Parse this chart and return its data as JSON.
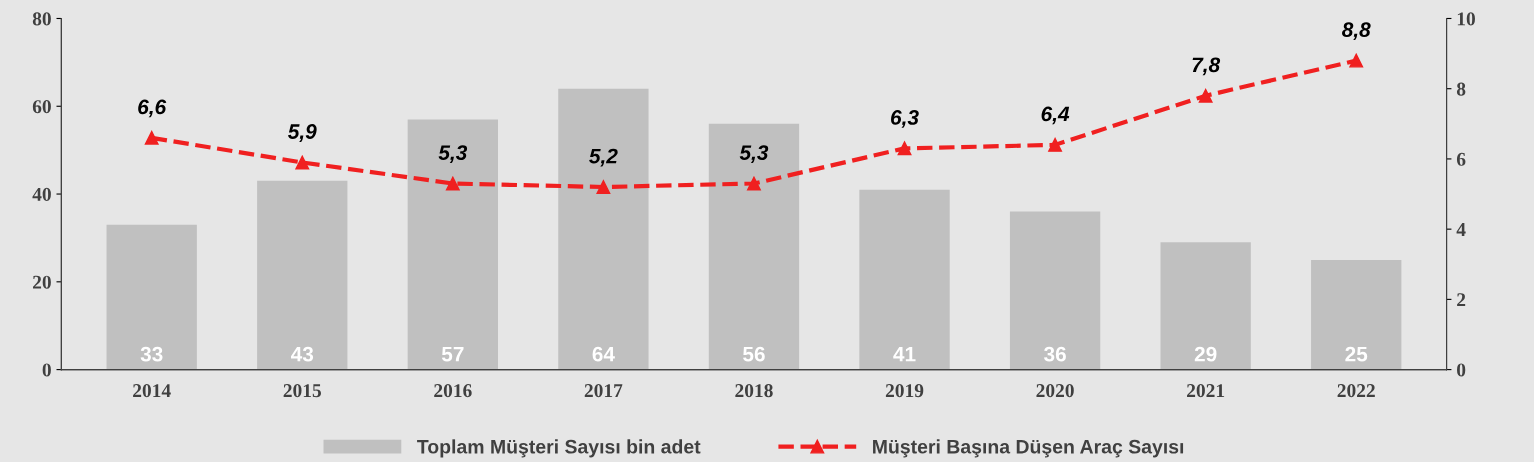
{
  "chart_data": {
    "type": "bar",
    "categories": [
      "2014",
      "2015",
      "2016",
      "2017",
      "2018",
      "2019",
      "2020",
      "2021",
      "2022"
    ],
    "series": [
      {
        "name": "Toplam Müşteri Sayısı bin adet",
        "color": "#c0c0c0",
        "values": [
          33,
          43,
          57,
          64,
          56,
          41,
          36,
          29,
          25
        ],
        "value_labels": [
          "33",
          "43",
          "57",
          "64",
          "56",
          "41",
          "36",
          "29",
          "25"
        ]
      },
      {
        "name": "Müşteri Başına Düşen Araç Sayısı",
        "type": "line",
        "axis": "y2",
        "color": "#f02020",
        "marker": "triangle",
        "line_style": "dashed",
        "values": [
          6.6,
          5.9,
          5.3,
          5.2,
          5.3,
          6.3,
          6.4,
          7.8,
          8.8
        ],
        "value_labels": [
          "6,6",
          "5,9",
          "5,3",
          "5,2",
          "5,3",
          "6,3",
          "6,4",
          "7,8",
          "8,8"
        ]
      }
    ],
    "ylim": [
      0,
      80
    ],
    "yticks": [
      0,
      20,
      40,
      60,
      80
    ],
    "y2lim": [
      0,
      10
    ],
    "y2ticks": [
      0,
      2,
      4,
      6,
      8,
      10
    ],
    "grid": false,
    "legend": "bottom"
  }
}
